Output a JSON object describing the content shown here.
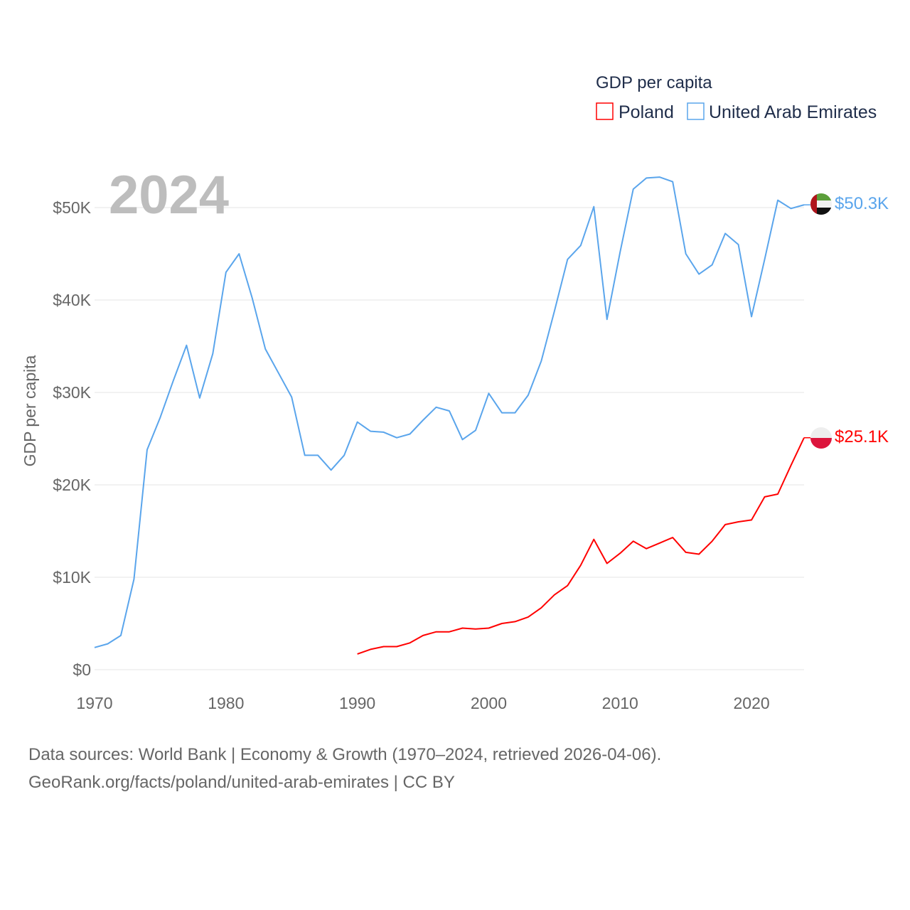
{
  "chart_data": {
    "type": "line",
    "title": "GDP per capita",
    "ylabel": "GDP per capita",
    "xlabel": "",
    "year_label": "2024",
    "xlim": [
      1970,
      2024
    ],
    "ylim": [
      0,
      55000
    ],
    "x_ticks": [
      1970,
      1980,
      1990,
      2000,
      2010,
      2020
    ],
    "x_tick_labels": [
      "1970",
      "1980",
      "1990",
      "2000",
      "2010",
      "2020"
    ],
    "y_ticks": [
      0,
      10000,
      20000,
      30000,
      40000,
      50000
    ],
    "y_tick_labels": [
      "$0",
      "$10K",
      "$20K",
      "$30K",
      "$40K",
      "$50K"
    ],
    "grid": true,
    "legend_position": "top-right",
    "series": [
      {
        "name": "Poland",
        "color": "#ff0000",
        "end_label": "$25.1K",
        "x": [
          1990,
          1991,
          1992,
          1993,
          1994,
          1995,
          1996,
          1997,
          1998,
          1999,
          2000,
          2001,
          2002,
          2003,
          2004,
          2005,
          2006,
          2007,
          2008,
          2009,
          2010,
          2011,
          2012,
          2013,
          2014,
          2015,
          2016,
          2017,
          2018,
          2019,
          2020,
          2021,
          2022,
          2023,
          2024
        ],
        "values": [
          1700,
          2200,
          2500,
          2500,
          2900,
          3700,
          4100,
          4100,
          4500,
          4400,
          4500,
          5000,
          5200,
          5700,
          6700,
          8100,
          9100,
          11300,
          14100,
          11500,
          12600,
          13900,
          13100,
          13700,
          14300,
          12700,
          12500,
          13900,
          15700,
          16000,
          16200,
          18700,
          19000,
          22100,
          25100
        ]
      },
      {
        "name": "United Arab Emirates",
        "color": "#5aa5ec",
        "end_label": "$50.3K",
        "x": [
          1970,
          1971,
          1972,
          1973,
          1974,
          1975,
          1976,
          1977,
          1978,
          1979,
          1980,
          1981,
          1982,
          1983,
          1984,
          1985,
          1986,
          1987,
          1988,
          1989,
          1990,
          1991,
          1992,
          1993,
          1994,
          1995,
          1996,
          1997,
          1998,
          1999,
          2000,
          2001,
          2002,
          2003,
          2004,
          2005,
          2006,
          2007,
          2008,
          2009,
          2010,
          2011,
          2012,
          2013,
          2014,
          2015,
          2016,
          2017,
          2018,
          2019,
          2020,
          2021,
          2022,
          2023,
          2024
        ],
        "values": [
          2400,
          2800,
          3700,
          9800,
          23800,
          27300,
          31300,
          35100,
          29400,
          34200,
          43000,
          45000,
          40200,
          34700,
          32100,
          29500,
          23200,
          23200,
          21600,
          23200,
          26800,
          25800,
          25700,
          25100,
          25500,
          27000,
          28400,
          28000,
          24900,
          25900,
          29900,
          27800,
          27800,
          29700,
          33400,
          38800,
          44400,
          45900,
          50100,
          37900,
          45200,
          52000,
          53200,
          53300,
          52800,
          45000,
          42800,
          43800,
          47200,
          46000,
          38200,
          44400,
          50800,
          49900,
          50300
        ]
      }
    ]
  },
  "footer": {
    "line1": "Data sources: World Bank | Economy & Growth (1970–2024, retrieved 2026-04-06).",
    "line2": "GeoRank.org/facts/poland/united-arab-emirates | CC BY"
  }
}
